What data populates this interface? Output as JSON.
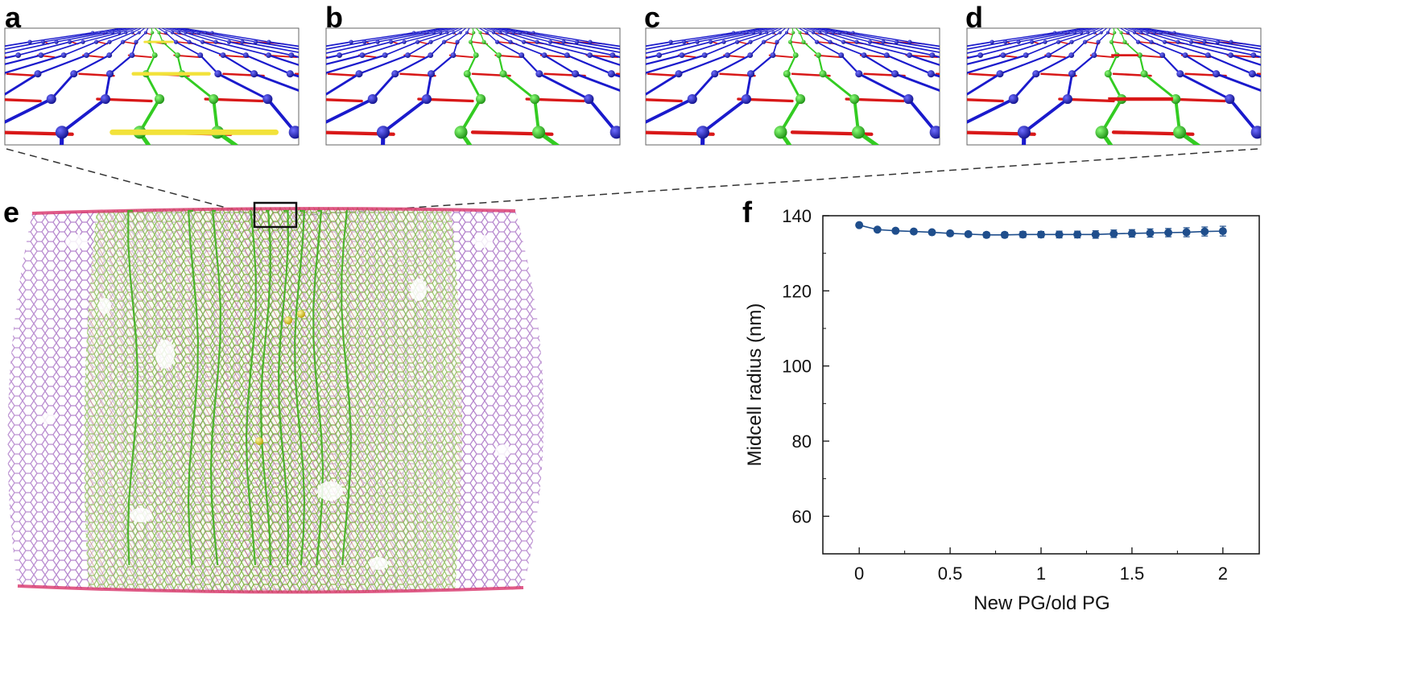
{
  "figure": {
    "panels": {
      "a": "a",
      "b": "b",
      "c": "c",
      "d": "d",
      "e": "e",
      "f": "f"
    }
  },
  "colors": {
    "blue_node": "#1f1fb4",
    "red_bond": "#dd1a1a",
    "green_strand": "#33cc22",
    "yellow_link": "#f2e23a",
    "mesh_purple": "#8a3fb0",
    "mesh_green": "#6fbf3a",
    "plot_blue": "#1f4e8c"
  },
  "chart_data": {
    "type": "line",
    "title": "",
    "xlabel": "New PG/old PG",
    "ylabel": "Midcell radius (nm)",
    "xlim": [
      -0.2,
      2.2
    ],
    "ylim": [
      50,
      140
    ],
    "xticks": [
      "0",
      "0.5",
      "1",
      "1.5",
      "2"
    ],
    "yticks": [
      "60",
      "80",
      "100",
      "120",
      "140"
    ],
    "x": [
      0,
      0.1,
      0.2,
      0.3,
      0.4,
      0.5,
      0.6,
      0.7,
      0.8,
      0.9,
      1.0,
      1.1,
      1.2,
      1.3,
      1.4,
      1.5,
      1.6,
      1.7,
      1.8,
      1.9,
      2.0
    ],
    "y": [
      137.5,
      136.3,
      136.0,
      135.8,
      135.6,
      135.3,
      135.1,
      134.9,
      134.9,
      135.0,
      135.0,
      135.0,
      135.0,
      135.0,
      135.2,
      135.3,
      135.4,
      135.5,
      135.6,
      135.8,
      135.9
    ],
    "yerr": [
      0.3,
      0.4,
      0.4,
      0.5,
      0.5,
      0.6,
      0.6,
      0.7,
      0.7,
      0.8,
      0.8,
      0.9,
      0.9,
      1.0,
      1.0,
      1.0,
      1.1,
      1.1,
      1.2,
      1.2,
      1.3
    ]
  }
}
